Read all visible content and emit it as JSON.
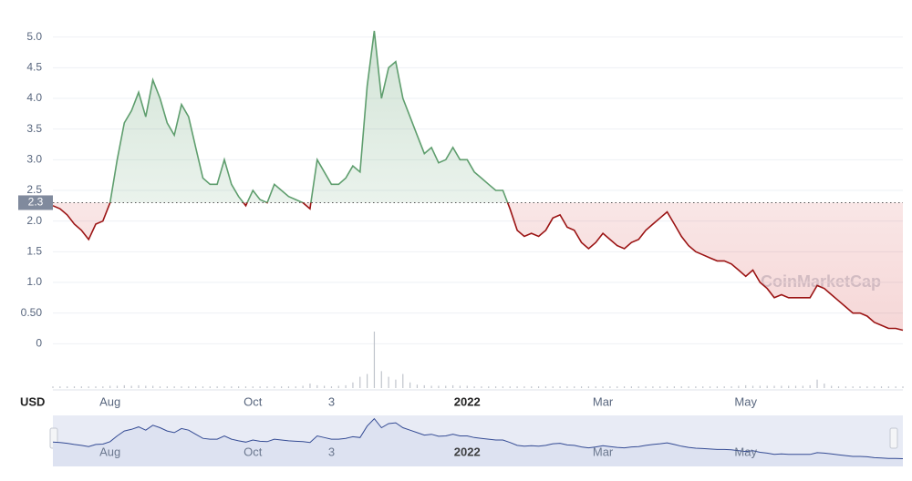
{
  "chart_data": {
    "type": "line",
    "watermark": "CoinMarketCap",
    "y_unit_label": "USD",
    "categories": [
      null,
      null,
      null,
      null,
      null,
      null,
      null,
      null,
      "Aug",
      null,
      null,
      null,
      null,
      null,
      null,
      null,
      null,
      null,
      null,
      null,
      null,
      null,
      null,
      null,
      null,
      null,
      null,
      null,
      "Oct",
      null,
      null,
      null,
      null,
      null,
      null,
      null,
      null,
      null,
      null,
      "3",
      null,
      null,
      null,
      null,
      null,
      null,
      null,
      null,
      null,
      null,
      null,
      null,
      null,
      null,
      null,
      null,
      null,
      null,
      "2022",
      null,
      null,
      null,
      null,
      null,
      null,
      null,
      null,
      null,
      null,
      null,
      null,
      null,
      null,
      null,
      null,
      null,
      null,
      "Mar",
      null,
      null,
      null,
      null,
      null,
      null,
      null,
      null,
      null,
      null,
      null,
      null,
      null,
      null,
      null,
      null,
      null,
      null,
      null,
      "May",
      null,
      null,
      null,
      null,
      null,
      null,
      null,
      null,
      null,
      null,
      null,
      null,
      null,
      null,
      null,
      null,
      null,
      null,
      null,
      null,
      null,
      null
    ],
    "values": [
      2.25,
      2.2,
      2.1,
      1.95,
      1.85,
      1.7,
      1.95,
      2.0,
      2.3,
      3.0,
      3.6,
      3.8,
      4.1,
      3.7,
      4.3,
      4.0,
      3.6,
      3.4,
      3.9,
      3.7,
      3.2,
      2.7,
      2.6,
      2.6,
      3.0,
      2.6,
      2.4,
      2.25,
      2.5,
      2.35,
      2.3,
      2.6,
      2.5,
      2.4,
      2.35,
      2.3,
      2.2,
      3.0,
      2.8,
      2.6,
      2.6,
      2.7,
      2.9,
      2.8,
      4.2,
      5.1,
      4.0,
      4.5,
      4.6,
      4.0,
      3.7,
      3.4,
      3.1,
      3.2,
      2.95,
      3.0,
      3.2,
      3.0,
      3.0,
      2.8,
      2.7,
      2.6,
      2.5,
      2.5,
      2.2,
      1.85,
      1.75,
      1.8,
      1.75,
      1.85,
      2.05,
      2.1,
      1.9,
      1.85,
      1.65,
      1.55,
      1.65,
      1.8,
      1.7,
      1.6,
      1.55,
      1.65,
      1.7,
      1.85,
      1.95,
      2.05,
      2.15,
      1.95,
      1.75,
      1.6,
      1.5,
      1.45,
      1.4,
      1.35,
      1.35,
      1.3,
      1.2,
      1.1,
      1.2,
      1.0,
      0.9,
      0.75,
      0.8,
      0.75,
      0.75,
      0.75,
      0.75,
      0.95,
      0.9,
      0.8,
      0.7,
      0.6,
      0.5,
      0.5,
      0.45,
      0.35,
      0.3,
      0.25,
      0.25,
      0.22
    ],
    "volume": [
      3,
      3,
      3,
      3,
      3,
      3,
      3,
      3,
      4,
      4,
      5,
      4,
      5,
      4,
      4,
      3,
      3,
      3,
      3,
      3,
      3,
      3,
      3,
      3,
      3,
      3,
      3,
      3,
      3,
      3,
      3,
      3,
      3,
      3,
      3,
      4,
      8,
      5,
      4,
      3,
      4,
      5,
      10,
      20,
      25,
      100,
      30,
      20,
      15,
      25,
      10,
      6,
      5,
      4,
      4,
      4,
      5,
      4,
      4,
      3,
      3,
      3,
      3,
      3,
      3,
      3,
      3,
      3,
      3,
      3,
      3,
      3,
      3,
      3,
      3,
      3,
      3,
      3,
      3,
      3,
      3,
      3,
      3,
      3,
      3,
      3,
      3,
      3,
      3,
      3,
      3,
      3,
      3,
      3,
      3,
      3,
      4,
      5,
      4,
      4,
      4,
      4,
      4,
      4,
      4,
      4,
      5,
      15,
      8,
      4,
      3,
      3,
      3,
      3,
      3,
      3,
      3,
      3,
      3,
      3
    ],
    "color_up": "#5f9e6e",
    "color_down": "#9b1414",
    "navigator_color": "#344b94",
    "baseline": 2.3,
    "ylim": [
      -0.5,
      5.5
    ],
    "yticks": [
      0,
      {
        "value": 0.5,
        "label": "0.50"
      },
      {
        "value": 1,
        "label": "1.0"
      },
      1.5,
      {
        "value": 2,
        "label": "2.0"
      },
      2.5,
      {
        "value": 3,
        "label": "3.0"
      },
      3.5,
      {
        "value": 4,
        "label": "4.0"
      },
      4.5,
      {
        "value": 5,
        "label": "5.0"
      }
    ],
    "grid": true
  }
}
